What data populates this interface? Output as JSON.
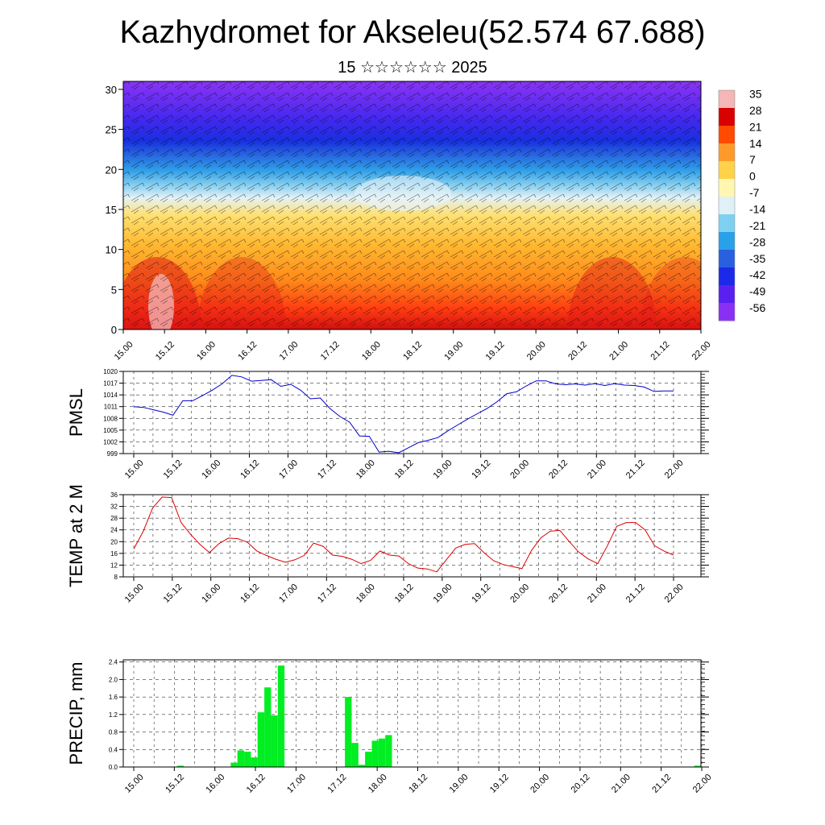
{
  "title": "Kazhydromet for Akseleu(52.574 67.688)",
  "subtitle": "15 ☆☆☆☆☆☆ 2025",
  "time_labels": [
    "15.00",
    "15.12",
    "16.00",
    "16.12",
    "17.00",
    "17.12",
    "18.00",
    "18.12",
    "19.00",
    "19.12",
    "20.00",
    "20.12",
    "21.00",
    "21.12",
    "22.00"
  ],
  "chart_data": [
    {
      "type": "heatmap",
      "name": "vertical_cross_section",
      "y_ticks": [
        0,
        5,
        10,
        15,
        20,
        25,
        30
      ],
      "ylim": [
        0,
        31
      ],
      "colorbar": {
        "labels": [
          "35",
          "28",
          "21",
          "14",
          "7",
          "0",
          "-7",
          "-14",
          "-21",
          "-28",
          "-35",
          "-42",
          "-49",
          "-56"
        ],
        "colors": [
          "#f4b6b6",
          "#d80000",
          "#ff4a00",
          "#ff9a2a",
          "#ffd24a",
          "#fff7b0",
          "#dff0f7",
          "#7fd0f0",
          "#2aa0e8",
          "#2860e0",
          "#1a2ae8",
          "#5a20f0",
          "#8a30f4"
        ]
      }
    },
    {
      "type": "line",
      "ylabel": "PMSL",
      "color": "#0000cc",
      "y_ticks": [
        999,
        1002,
        1005,
        1008,
        1011,
        1014,
        1017,
        1020
      ],
      "ylim": [
        999,
        1020
      ],
      "values": [
        1011,
        1010.8,
        1010.2,
        1009.6,
        1008.8,
        1012.5,
        1012.5,
        1013.8,
        1015.2,
        1016.8,
        1019,
        1018.6,
        1017.5,
        1017.7,
        1017.9,
        1016.2,
        1016.7,
        1015.2,
        1013,
        1013.2,
        1010.5,
        1008.5,
        1007,
        1003.5,
        1003.4,
        999.4,
        999.6,
        999.2,
        1000.5,
        1001.8,
        1002.4,
        1003.1,
        1004.8,
        1006.3,
        1007.8,
        1009.2,
        1010.5,
        1012.2,
        1014.3,
        1014.8,
        1016.3,
        1017.6,
        1017.6,
        1016.8,
        1016.6,
        1016.8,
        1016.5,
        1016.9,
        1016.4,
        1016.9,
        1016.5,
        1016.4,
        1016,
        1014.9,
        1015,
        1015
      ]
    },
    {
      "type": "line",
      "ylabel": "TEMP at 2 M",
      "color": "#dd0000",
      "y_ticks": [
        8,
        12,
        16,
        20,
        24,
        28,
        32,
        36
      ],
      "ylim": [
        8,
        36
      ],
      "values": [
        17.5,
        23.5,
        31.5,
        35.2,
        35,
        26.5,
        22.5,
        19,
        16.3,
        19.3,
        21.2,
        21,
        19.8,
        16.8,
        15.3,
        14,
        13,
        13.8,
        15.3,
        19.5,
        18.4,
        15.4,
        15,
        14,
        12.5,
        13.6,
        16.8,
        15.4,
        15.1,
        12.5,
        11,
        10.7,
        9.7,
        13.8,
        17.8,
        19.1,
        19.3,
        16.2,
        13.5,
        12.2,
        11.5,
        10.8,
        17,
        21.3,
        23.6,
        23.8,
        20,
        16.4,
        14.1,
        12.5,
        18.5,
        25.2,
        26.5,
        26.5,
        24,
        18.6,
        16.8,
        15.4
      ]
    },
    {
      "type": "bar",
      "ylabel": "PRECIP, mm",
      "color": "#00ee22",
      "y_ticks": [
        "0.0",
        "0.4",
        "0.8",
        "1.2",
        "1.6",
        "2.0",
        "2.4"
      ],
      "ylim": [
        0,
        2.45
      ],
      "values": [
        0,
        0,
        0,
        0,
        0,
        0,
        0,
        0,
        0.03,
        0,
        0,
        0,
        0,
        0,
        0,
        0,
        0.1,
        0.38,
        0.35,
        0.22,
        1.25,
        1.82,
        1.18,
        2.32,
        0,
        0,
        0,
        0,
        0,
        0,
        0,
        0,
        0,
        1.6,
        0.55,
        0.05,
        0.35,
        0.6,
        0.65,
        0.73,
        0,
        0,
        0,
        0,
        0,
        0,
        0,
        0,
        0,
        0,
        0,
        0,
        0,
        0,
        0,
        0,
        0,
        0,
        0,
        0,
        0,
        0,
        0,
        0,
        0,
        0,
        0,
        0,
        0,
        0,
        0,
        0,
        0,
        0,
        0,
        0,
        0,
        0,
        0,
        0,
        0,
        0,
        0,
        0,
        0,
        0.03
      ]
    }
  ]
}
